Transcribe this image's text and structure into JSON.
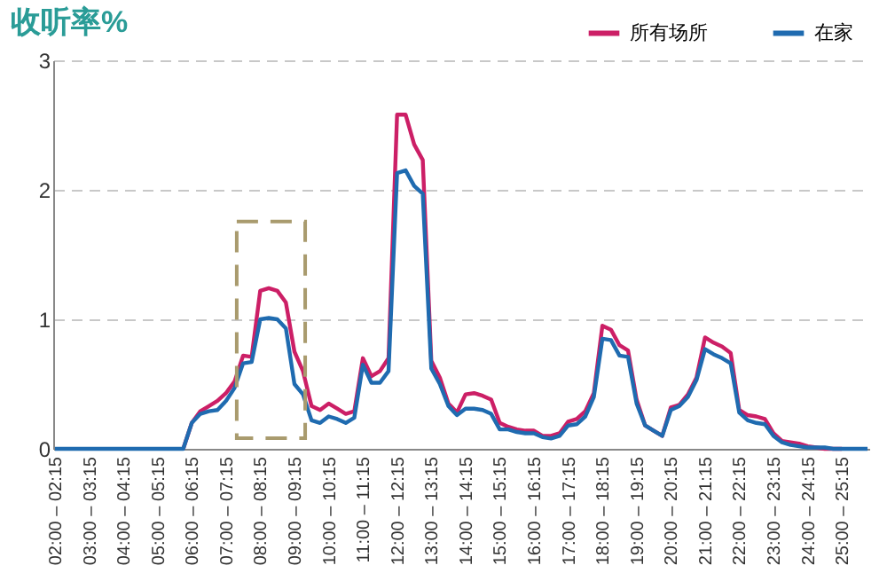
{
  "chart_data": {
    "type": "line",
    "title": "收听率%",
    "categories": [
      "02:00 – 02:15",
      null,
      null,
      null,
      "03:00 – 03:15",
      null,
      null,
      null,
      "04:00 – 04:15",
      null,
      null,
      null,
      "05:00 – 05:15",
      null,
      null,
      null,
      "06:00 – 06:15",
      null,
      null,
      null,
      "07:00 – 07:15",
      null,
      null,
      null,
      "08:00 – 08:15",
      null,
      null,
      null,
      "09:00 – 09:15",
      null,
      null,
      null,
      "10:00 – 10:15",
      null,
      null,
      null,
      "11:00 – 11:15",
      null,
      null,
      null,
      "12:00 – 12:15",
      null,
      null,
      null,
      "13:00 – 13:15",
      null,
      null,
      null,
      "14:00 – 14:15",
      null,
      null,
      null,
      "15:00 – 15:15",
      null,
      null,
      null,
      "16:00 – 16:15",
      null,
      null,
      null,
      "17:00 – 17:15",
      null,
      null,
      null,
      "18:00 – 18:15",
      null,
      null,
      null,
      "19:00 – 19:15",
      null,
      null,
      null,
      "20:00 – 20:15",
      null,
      null,
      null,
      "21:00 – 21:15",
      null,
      null,
      null,
      "22:00 – 22:15",
      null,
      null,
      null,
      "23:00 – 23:15",
      null,
      null,
      null,
      "24:00 – 24:15",
      null,
      null,
      null,
      "25:00 – 25:15",
      null,
      null,
      null
    ],
    "series": [
      {
        "name": "所有场所",
        "color": "#cc1f66",
        "values": [
          null,
          null,
          null,
          null,
          null,
          null,
          null,
          null,
          null,
          null,
          null,
          null,
          null,
          null,
          null,
          0,
          0.2,
          0.29,
          0.33,
          0.37,
          0.43,
          0.52,
          0.72,
          0.71,
          1.22,
          1.24,
          1.22,
          1.13,
          0.75,
          0.6,
          0.33,
          0.3,
          0.35,
          0.31,
          0.27,
          0.29,
          0.7,
          0.56,
          0.6,
          0.7,
          2.58,
          2.58,
          2.35,
          2.23,
          0.68,
          0.55,
          0.35,
          0.28,
          0.42,
          0.43,
          0.41,
          0.38,
          0.2,
          0.17,
          0.15,
          0.14,
          0.14,
          0.1,
          0.1,
          0.12,
          0.21,
          0.23,
          0.29,
          0.43,
          0.95,
          0.92,
          0.8,
          0.76,
          0.38,
          0.18,
          0.14,
          0.1,
          0.32,
          0.34,
          0.42,
          0.55,
          0.86,
          0.82,
          0.79,
          0.74,
          0.3,
          0.26,
          0.25,
          0.23,
          0.12,
          0.06,
          0.05,
          0.04,
          0.02,
          0.01,
          0,
          0,
          0,
          null,
          null,
          null
        ]
      },
      {
        "name": "在家",
        "color": "#1f6bb0",
        "values": [
          0,
          0,
          0,
          0,
          0,
          0,
          0,
          0,
          0,
          0,
          0,
          0,
          0,
          0,
          0,
          0,
          0.2,
          0.27,
          0.29,
          0.3,
          0.37,
          0.47,
          0.66,
          0.67,
          1.0,
          1.01,
          1.0,
          0.93,
          0.5,
          0.42,
          0.22,
          0.2,
          0.25,
          0.23,
          0.2,
          0.24,
          0.65,
          0.51,
          0.51,
          0.6,
          2.13,
          2.15,
          2.03,
          1.97,
          0.62,
          0.5,
          0.33,
          0.26,
          0.31,
          0.31,
          0.3,
          0.27,
          0.15,
          0.15,
          0.13,
          0.12,
          0.12,
          0.09,
          0.08,
          0.1,
          0.18,
          0.19,
          0.25,
          0.4,
          0.85,
          0.84,
          0.72,
          0.71,
          0.35,
          0.18,
          0.14,
          0.1,
          0.3,
          0.33,
          0.4,
          0.53,
          0.77,
          0.73,
          0.7,
          0.66,
          0.28,
          0.22,
          0.2,
          0.19,
          0.1,
          0.05,
          0.03,
          0.02,
          0.01,
          0.01,
          0.01,
          0,
          0,
          0,
          0,
          0
        ]
      }
    ],
    "ylim": [
      0,
      3
    ],
    "yticks": [
      0,
      1,
      2,
      3
    ],
    "grid": "y",
    "legend": "top right",
    "marker": "none",
    "line_style": "solid"
  }
}
